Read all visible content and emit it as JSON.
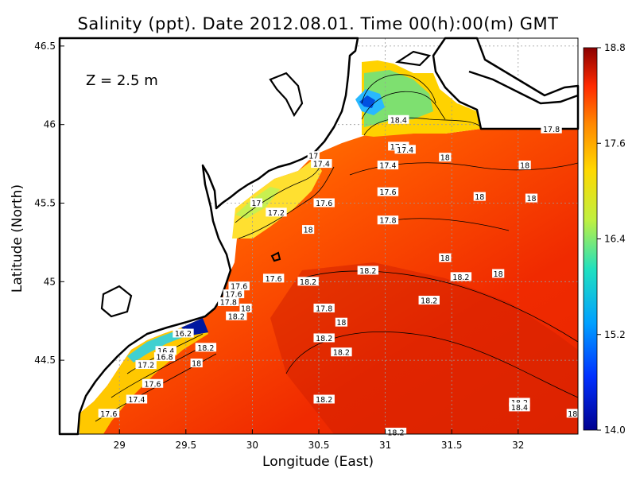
{
  "title": "Salinity (ppt). Date 2012.08.01. Time 00(h):00(m) GMT",
  "depth_note": "Z = 2.5 m",
  "xlabel": "Longitude (East)",
  "ylabel": "Latitude (North)",
  "x_ticks": [
    {
      "value": 29,
      "label": "29"
    },
    {
      "value": 29.5,
      "label": "29.5"
    },
    {
      "value": 30,
      "label": "30"
    },
    {
      "value": 30.5,
      "label": "30.5"
    },
    {
      "value": 31,
      "label": "31"
    },
    {
      "value": 31.5,
      "label": "31.5"
    },
    {
      "value": 32,
      "label": "32"
    }
  ],
  "y_ticks": [
    {
      "value": 44.5,
      "label": "44.5"
    },
    {
      "value": 45,
      "label": "45"
    },
    {
      "value": 45.5,
      "label": "45.5"
    },
    {
      "value": 46,
      "label": "46"
    },
    {
      "value": 46.5,
      "label": "46.5"
    }
  ],
  "colorbar_ticks": [
    {
      "value": 14.0,
      "label": "14.0"
    },
    {
      "value": 15.2,
      "label": "15.2"
    },
    {
      "value": 16.4,
      "label": "16.4"
    },
    {
      "value": 17.6,
      "label": "17.6"
    },
    {
      "value": 18.8,
      "label": "18.8"
    }
  ],
  "chart_data": {
    "type": "heatmap",
    "variable": "Salinity (ppt)",
    "title": "Salinity (ppt). Date 2012.08.01. Time 00(h):00(m) GMT",
    "xlabel": "Longitude (East)",
    "ylabel": "Latitude (North)",
    "xlim": [
      28.55,
      32.45
    ],
    "ylim": [
      44.03,
      46.55
    ],
    "colorbar_range": [
      14.0,
      18.8
    ],
    "grid": true,
    "colors": {
      "land": "#ffffff",
      "coastline": "#000000",
      "low": "#00008f",
      "high": "#8b0000"
    },
    "contour_labels": [
      {
        "lon": 31.1,
        "lat": 46.03,
        "label": "18.4"
      },
      {
        "lon": 31.1,
        "lat": 45.86,
        "label": "17.2"
      },
      {
        "lon": 31.15,
        "lat": 45.84,
        "label": "17.4"
      },
      {
        "lon": 32.25,
        "lat": 45.97,
        "label": "17.8"
      },
      {
        "lon": 30.46,
        "lat": 45.8,
        "label": "17"
      },
      {
        "lon": 30.52,
        "lat": 45.75,
        "label": "17.4"
      },
      {
        "lon": 31.02,
        "lat": 45.74,
        "label": "17.4"
      },
      {
        "lon": 31.45,
        "lat": 45.79,
        "label": "18"
      },
      {
        "lon": 32.05,
        "lat": 45.74,
        "label": "18"
      },
      {
        "lon": 30.03,
        "lat": 45.5,
        "label": "17"
      },
      {
        "lon": 30.18,
        "lat": 45.44,
        "label": "17.2"
      },
      {
        "lon": 30.54,
        "lat": 45.5,
        "label": "17.6"
      },
      {
        "lon": 31.02,
        "lat": 45.57,
        "label": "17.6"
      },
      {
        "lon": 31.71,
        "lat": 45.54,
        "label": "18"
      },
      {
        "lon": 32.1,
        "lat": 45.53,
        "label": "18"
      },
      {
        "lon": 31.02,
        "lat": 45.39,
        "label": "17.8"
      },
      {
        "lon": 30.42,
        "lat": 45.33,
        "label": "18"
      },
      {
        "lon": 31.45,
        "lat": 45.15,
        "label": "18"
      },
      {
        "lon": 30.87,
        "lat": 45.07,
        "label": "18.2"
      },
      {
        "lon": 31.57,
        "lat": 45.03,
        "label": "18.2"
      },
      {
        "lon": 31.85,
        "lat": 45.05,
        "label": "18"
      },
      {
        "lon": 29.9,
        "lat": 44.97,
        "label": "17.6"
      },
      {
        "lon": 30.16,
        "lat": 45.02,
        "label": "17.6"
      },
      {
        "lon": 30.42,
        "lat": 45.0,
        "label": "18.2"
      },
      {
        "lon": 29.86,
        "lat": 44.92,
        "label": "17.6"
      },
      {
        "lon": 29.82,
        "lat": 44.87,
        "label": "17.8"
      },
      {
        "lon": 29.95,
        "lat": 44.83,
        "label": "18"
      },
      {
        "lon": 29.88,
        "lat": 44.78,
        "label": "18.2"
      },
      {
        "lon": 30.54,
        "lat": 44.83,
        "label": "17.8"
      },
      {
        "lon": 31.33,
        "lat": 44.88,
        "label": "18.2"
      },
      {
        "lon": 30.67,
        "lat": 44.74,
        "label": "18"
      },
      {
        "lon": 29.48,
        "lat": 44.67,
        "label": "16.2"
      },
      {
        "lon": 30.54,
        "lat": 44.64,
        "label": "18.2"
      },
      {
        "lon": 29.35,
        "lat": 44.56,
        "label": "16.4"
      },
      {
        "lon": 29.34,
        "lat": 44.52,
        "label": "16.8"
      },
      {
        "lon": 29.2,
        "lat": 44.47,
        "label": "17.2"
      },
      {
        "lon": 29.65,
        "lat": 44.58,
        "label": "18.2"
      },
      {
        "lon": 30.67,
        "lat": 44.55,
        "label": "18.2"
      },
      {
        "lon": 29.58,
        "lat": 44.48,
        "label": "18"
      },
      {
        "lon": 29.25,
        "lat": 44.35,
        "label": "17.6"
      },
      {
        "lon": 29.13,
        "lat": 44.25,
        "label": "17.4"
      },
      {
        "lon": 30.54,
        "lat": 44.25,
        "label": "18.2"
      },
      {
        "lon": 32.01,
        "lat": 44.23,
        "label": "18.2"
      },
      {
        "lon": 32.01,
        "lat": 44.2,
        "label": "18.4"
      },
      {
        "lon": 28.92,
        "lat": 44.16,
        "label": "17.6"
      },
      {
        "lon": 32.41,
        "lat": 44.16,
        "label": "18"
      },
      {
        "lon": 31.08,
        "lat": 44.04,
        "label": "18.2"
      }
    ]
  }
}
